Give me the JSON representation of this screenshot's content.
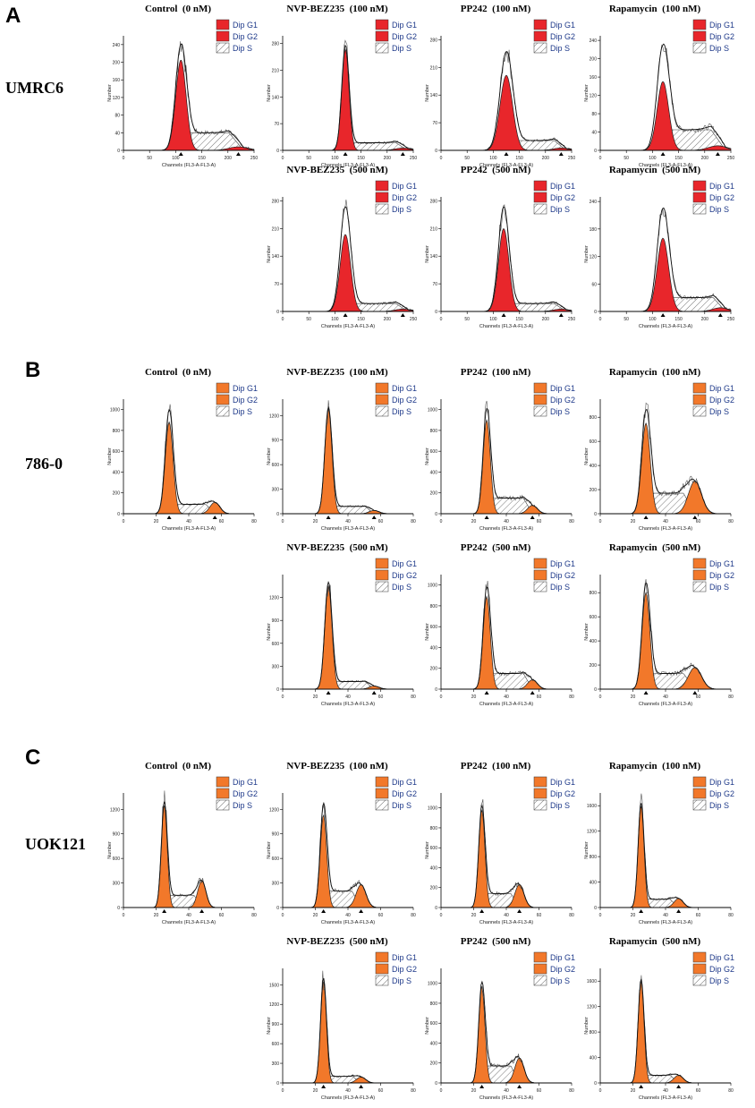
{
  "legend": {
    "g1": "Dip G1",
    "g2": "Dip G2",
    "s": "Dip S"
  },
  "axis": {
    "xlabel": "Channels (FL3-A-FL3-A)",
    "ylabel": "Number"
  },
  "colors": {
    "umrc6_peak": "#e8262b",
    "orange_peak": "#f2782a",
    "legend_text": "#1f3a8a"
  },
  "panels": [
    {
      "letter": "A",
      "cell_line": "UMRC6"
    },
    {
      "letter": "B",
      "cell_line": "786-0"
    },
    {
      "letter": "C",
      "cell_line": "UOK121"
    }
  ],
  "chart_data": [
    {
      "panel": "A",
      "cell_line": "UMRC6",
      "title": "Control  (0 nM)",
      "type": "area",
      "xlim": [
        0,
        250
      ],
      "xticks": [
        0,
        50,
        100,
        150,
        200,
        250
      ],
      "yticks": [
        0,
        40,
        80,
        120,
        160,
        200,
        240
      ],
      "ymax": 260,
      "g1": {
        "center": 110,
        "sigma": 10,
        "height": 205
      },
      "g2": {
        "center": 220,
        "sigma": 18,
        "height": 8
      },
      "s": {
        "from": 110,
        "to": 230,
        "level": 40
      },
      "peak": 240
    },
    {
      "panel": "A",
      "cell_line": "UMRC6",
      "title": "NVP-BEZ235  (100 nM)",
      "type": "area",
      "xlim": [
        0,
        250
      ],
      "xticks": [
        0,
        50,
        100,
        150,
        200,
        250
      ],
      "yticks": [
        0,
        70,
        140,
        210,
        280
      ],
      "ymax": 300,
      "g1": {
        "center": 120,
        "sigma": 7,
        "height": 265
      },
      "g2": {
        "center": 230,
        "sigma": 15,
        "height": 6
      },
      "s": {
        "from": 120,
        "to": 240,
        "level": 20
      },
      "peak": 275
    },
    {
      "panel": "A",
      "cell_line": "UMRC6",
      "title": "PP242  (100 nM)",
      "type": "area",
      "xlim": [
        0,
        250
      ],
      "xticks": [
        0,
        50,
        100,
        150,
        200,
        250
      ],
      "yticks": [
        0,
        70,
        140,
        210,
        280
      ],
      "ymax": 290,
      "g1": {
        "center": 125,
        "sigma": 12,
        "height": 190
      },
      "g2": {
        "center": 230,
        "sigma": 15,
        "height": 6
      },
      "s": {
        "from": 125,
        "to": 240,
        "level": 25
      },
      "peak": 250
    },
    {
      "panel": "A",
      "cell_line": "UMRC6",
      "title": "Rapamycin  (100 nM)",
      "type": "area",
      "xlim": [
        0,
        250
      ],
      "xticks": [
        0,
        50,
        100,
        150,
        200,
        250
      ],
      "yticks": [
        0,
        40,
        80,
        120,
        160,
        200,
        240
      ],
      "ymax": 250,
      "g1": {
        "center": 120,
        "sigma": 11,
        "height": 150
      },
      "g2": {
        "center": 225,
        "sigma": 18,
        "height": 10
      },
      "s": {
        "from": 120,
        "to": 240,
        "level": 45
      },
      "peak": 230
    },
    {
      "panel": "A",
      "cell_line": "UMRC6",
      "title": "NVP-BEZ235  (500 nM)",
      "type": "area",
      "xlim": [
        0,
        250
      ],
      "xticks": [
        0,
        50,
        100,
        150,
        200,
        250
      ],
      "yticks": [
        0,
        70,
        140,
        210,
        280
      ],
      "ymax": 290,
      "g1": {
        "center": 120,
        "sigma": 10,
        "height": 195
      },
      "g2": {
        "center": 230,
        "sigma": 15,
        "height": 6
      },
      "s": {
        "from": 120,
        "to": 240,
        "level": 20
      },
      "peak": 265
    },
    {
      "panel": "A",
      "cell_line": "UMRC6",
      "title": "PP242  (500 nM)",
      "type": "area",
      "xlim": [
        0,
        250
      ],
      "xticks": [
        0,
        50,
        100,
        150,
        200,
        250
      ],
      "yticks": [
        0,
        70,
        140,
        210,
        280
      ],
      "ymax": 290,
      "g1": {
        "center": 120,
        "sigma": 10,
        "height": 210
      },
      "g2": {
        "center": 230,
        "sigma": 15,
        "height": 6
      },
      "s": {
        "from": 120,
        "to": 240,
        "level": 20
      },
      "peak": 265
    },
    {
      "panel": "A",
      "cell_line": "UMRC6",
      "title": "Rapamycin  (500 nM)",
      "type": "area",
      "xlim": [
        0,
        250
      ],
      "xticks": [
        0,
        50,
        100,
        150,
        200,
        250
      ],
      "yticks": [
        0,
        60,
        120,
        180,
        240
      ],
      "ymax": 250,
      "g1": {
        "center": 120,
        "sigma": 11,
        "height": 160
      },
      "g2": {
        "center": 230,
        "sigma": 15,
        "height": 8
      },
      "s": {
        "from": 120,
        "to": 240,
        "level": 30
      },
      "peak": 225
    },
    {
      "panel": "B",
      "cell_line": "786-0",
      "title": "Control  (0 nM)",
      "type": "area",
      "xlim": [
        0,
        80
      ],
      "xticks": [
        0,
        20,
        40,
        60,
        80
      ],
      "yticks": [
        0,
        200,
        400,
        600,
        800,
        1000
      ],
      "ymax": 1100,
      "g1": {
        "center": 28,
        "sigma": 2.4,
        "height": 880
      },
      "g2": {
        "center": 56,
        "sigma": 3,
        "height": 110
      },
      "s": {
        "from": 28,
        "to": 56,
        "level": 90
      },
      "peak": 1000
    },
    {
      "panel": "B",
      "cell_line": "786-0",
      "title": "NVP-BEZ235  (100 nM)",
      "type": "area",
      "xlim": [
        0,
        80
      ],
      "xticks": [
        0,
        20,
        40,
        60,
        80
      ],
      "yticks": [
        0,
        300,
        600,
        900,
        1200
      ],
      "ymax": 1400,
      "g1": {
        "center": 28,
        "sigma": 2.2,
        "height": 1280
      },
      "g2": {
        "center": 56,
        "sigma": 3,
        "height": 40
      },
      "s": {
        "from": 28,
        "to": 56,
        "level": 90
      },
      "peak": 1300
    },
    {
      "panel": "B",
      "cell_line": "786-0",
      "title": "PP242  (100 nM)",
      "type": "area",
      "xlim": [
        0,
        80
      ],
      "xticks": [
        0,
        20,
        40,
        60,
        80
      ],
      "yticks": [
        0,
        200,
        400,
        600,
        800,
        1000
      ],
      "ymax": 1100,
      "g1": {
        "center": 28,
        "sigma": 2.2,
        "height": 900
      },
      "g2": {
        "center": 56,
        "sigma": 3,
        "height": 80
      },
      "s": {
        "from": 28,
        "to": 56,
        "level": 150
      },
      "peak": 1010
    },
    {
      "panel": "B",
      "cell_line": "786-0",
      "title": "Rapamycin  (100 nM)",
      "type": "area",
      "xlim": [
        0,
        80
      ],
      "xticks": [
        0,
        20,
        40,
        60,
        80
      ],
      "yticks": [
        0,
        200,
        400,
        600,
        800
      ],
      "ymax": 950,
      "g1": {
        "center": 28,
        "sigma": 2.6,
        "height": 750
      },
      "g2": {
        "center": 58,
        "sigma": 4,
        "height": 270
      },
      "s": {
        "from": 28,
        "to": 58,
        "level": 170
      },
      "peak": 860
    },
    {
      "panel": "B",
      "cell_line": "786-0",
      "title": "NVP-BEZ235  (500 nM)",
      "type": "area",
      "xlim": [
        0,
        80
      ],
      "xticks": [
        0,
        20,
        40,
        60,
        80
      ],
      "yticks": [
        0,
        300,
        600,
        900,
        1200
      ],
      "ymax": 1500,
      "g1": {
        "center": 28,
        "sigma": 2.2,
        "height": 1350
      },
      "g2": {
        "center": 56,
        "sigma": 3,
        "height": 40
      },
      "s": {
        "from": 28,
        "to": 56,
        "level": 100
      },
      "peak": 1400
    },
    {
      "panel": "B",
      "cell_line": "786-0",
      "title": "PP242  (500 nM)",
      "type": "area",
      "xlim": [
        0,
        80
      ],
      "xticks": [
        0,
        20,
        40,
        60,
        80
      ],
      "yticks": [
        0,
        200,
        400,
        600,
        800,
        1000
      ],
      "ymax": 1100,
      "g1": {
        "center": 28,
        "sigma": 2.2,
        "height": 890
      },
      "g2": {
        "center": 56,
        "sigma": 3,
        "height": 90
      },
      "s": {
        "from": 28,
        "to": 56,
        "level": 150
      },
      "peak": 980
    },
    {
      "panel": "B",
      "cell_line": "786-0",
      "title": "Rapamycin  (500 nM)",
      "type": "area",
      "xlim": [
        0,
        80
      ],
      "xticks": [
        0,
        20,
        40,
        60,
        80
      ],
      "yticks": [
        0,
        200,
        400,
        600,
        800
      ],
      "ymax": 950,
      "g1": {
        "center": 28,
        "sigma": 2.4,
        "height": 800
      },
      "g2": {
        "center": 58,
        "sigma": 4,
        "height": 180
      },
      "s": {
        "from": 28,
        "to": 58,
        "level": 130
      },
      "peak": 880
    },
    {
      "panel": "C",
      "cell_line": "UOK121",
      "title": "Control  (0 nM)",
      "type": "area",
      "xlim": [
        0,
        80
      ],
      "xticks": [
        0,
        20,
        40,
        60,
        80
      ],
      "yticks": [
        0,
        300,
        600,
        900,
        1200
      ],
      "ymax": 1400,
      "g1": {
        "center": 25,
        "sigma": 1.8,
        "height": 1250
      },
      "g2": {
        "center": 48,
        "sigma": 2.5,
        "height": 330
      },
      "s": {
        "from": 25,
        "to": 48,
        "level": 150
      },
      "peak": 1290
    },
    {
      "panel": "C",
      "cell_line": "UOK121",
      "title": "NVP-BEZ235  (100 nM)",
      "type": "area",
      "xlim": [
        0,
        80
      ],
      "xticks": [
        0,
        20,
        40,
        60,
        80
      ],
      "yticks": [
        0,
        300,
        600,
        900,
        1200
      ],
      "ymax": 1400,
      "g1": {
        "center": 25,
        "sigma": 2,
        "height": 1130
      },
      "g2": {
        "center": 48,
        "sigma": 3,
        "height": 280
      },
      "s": {
        "from": 25,
        "to": 48,
        "level": 200
      },
      "peak": 1270
    },
    {
      "panel": "C",
      "cell_line": "UOK121",
      "title": "PP242  (100 nM)",
      "type": "area",
      "xlim": [
        0,
        80
      ],
      "xticks": [
        0,
        20,
        40,
        60,
        80
      ],
      "yticks": [
        0,
        200,
        400,
        600,
        800,
        1000
      ],
      "ymax": 1150,
      "g1": {
        "center": 25,
        "sigma": 1.9,
        "height": 980
      },
      "g2": {
        "center": 48,
        "sigma": 2.8,
        "height": 230
      },
      "s": {
        "from": 25,
        "to": 48,
        "level": 140
      },
      "peak": 1020
    },
    {
      "panel": "C",
      "cell_line": "UOK121",
      "title": "Rapamycin  (100 nM)",
      "type": "area",
      "xlim": [
        0,
        80
      ],
      "xticks": [
        0,
        20,
        40,
        60,
        80
      ],
      "yticks": [
        0,
        400,
        800,
        1200,
        1600
      ],
      "ymax": 1800,
      "g1": {
        "center": 25,
        "sigma": 1.8,
        "height": 1600
      },
      "g2": {
        "center": 48,
        "sigma": 2.8,
        "height": 140
      },
      "s": {
        "from": 25,
        "to": 48,
        "level": 130
      },
      "peak": 1640
    },
    {
      "panel": "C",
      "cell_line": "UOK121",
      "title": "NVP-BEZ235  (500 nM)",
      "type": "area",
      "xlim": [
        0,
        80
      ],
      "xticks": [
        0,
        20,
        40,
        60,
        80
      ],
      "yticks": [
        0,
        300,
        600,
        900,
        1200,
        1500
      ],
      "ymax": 1750,
      "g1": {
        "center": 25,
        "sigma": 1.8,
        "height": 1550
      },
      "g2": {
        "center": 48,
        "sigma": 2.8,
        "height": 90
      },
      "s": {
        "from": 25,
        "to": 48,
        "level": 100
      },
      "peak": 1600
    },
    {
      "panel": "C",
      "cell_line": "UOK121",
      "title": "PP242  (500 nM)",
      "type": "area",
      "xlim": [
        0,
        80
      ],
      "xticks": [
        0,
        20,
        40,
        60,
        80
      ],
      "yticks": [
        0,
        200,
        400,
        600,
        800,
        1000
      ],
      "ymax": 1150,
      "g1": {
        "center": 25,
        "sigma": 1.9,
        "height": 970
      },
      "g2": {
        "center": 48,
        "sigma": 2.8,
        "height": 250
      },
      "s": {
        "from": 25,
        "to": 48,
        "level": 170
      },
      "peak": 1010
    },
    {
      "panel": "C",
      "cell_line": "UOK121",
      "title": "Rapamycin  (500 nM)",
      "type": "area",
      "xlim": [
        0,
        80
      ],
      "xticks": [
        0,
        20,
        40,
        60,
        80
      ],
      "yticks": [
        0,
        400,
        800,
        1200,
        1600
      ],
      "ymax": 1800,
      "g1": {
        "center": 25,
        "sigma": 1.8,
        "height": 1600
      },
      "g2": {
        "center": 48,
        "sigma": 2.8,
        "height": 120
      },
      "s": {
        "from": 25,
        "to": 48,
        "level": 120
      },
      "peak": 1630
    }
  ]
}
